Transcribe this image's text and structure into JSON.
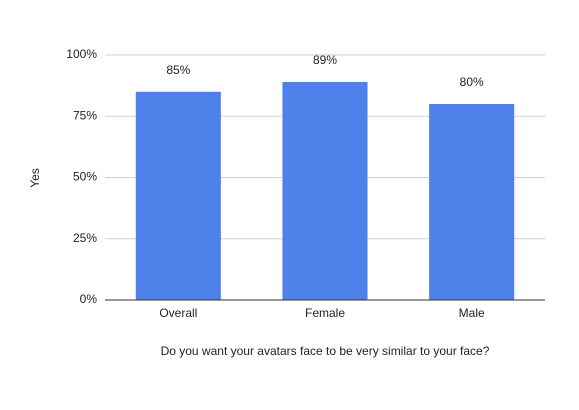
{
  "chart_data": {
    "type": "bar",
    "y_label": "Yes",
    "x_label": "Do you want your avatars face to be very similar to your face?",
    "categories": [
      "Overall",
      "Female",
      "Male"
    ],
    "values": [
      85,
      89,
      80
    ],
    "value_labels": [
      "85%",
      "89%",
      "80%"
    ],
    "color": "#4f81ea",
    "ylim": [
      0,
      100
    ],
    "yticks": [
      {
        "value": 0,
        "label": "0%"
      },
      {
        "value": 25,
        "label": "25%"
      },
      {
        "value": 50,
        "label": "50%"
      },
      {
        "value": 75,
        "label": "75%"
      },
      {
        "value": 100,
        "label": "100%"
      }
    ],
    "grid": true
  }
}
